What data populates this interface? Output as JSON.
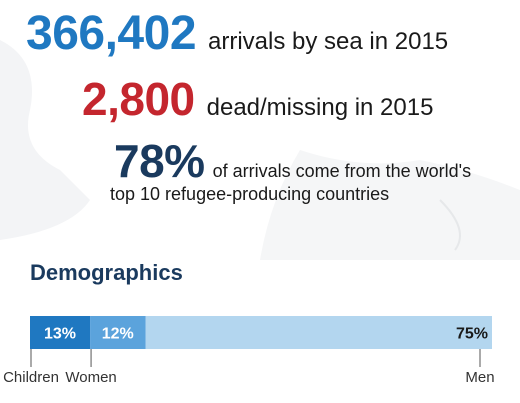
{
  "stats": {
    "arrivals": {
      "number": "366,402",
      "text": "arrivals by sea in 2015",
      "color": "#1f78c1"
    },
    "dead": {
      "number": "2,800",
      "text": "dead/missing in 2015",
      "color": "#c4262e"
    },
    "origin": {
      "number": "78%",
      "text_line1": "of arrivals come from the world's",
      "text_line2": "top 10 refugee-producing countries",
      "color": "#1a3a5e"
    }
  },
  "demographics": {
    "title": "Demographics"
  },
  "chart_data": {
    "type": "bar",
    "orientation": "horizontal-stacked",
    "title": "Demographics",
    "unit": "%",
    "categories": [
      "Children",
      "Women",
      "Men"
    ],
    "values": [
      13,
      12,
      75
    ],
    "value_labels": [
      "13%",
      "12%",
      "75%"
    ],
    "colors": [
      "#1f78c1",
      "#5ba3dc",
      "#b3d6ef"
    ],
    "label_colors": [
      "#ffffff",
      "#ffffff",
      "#1a1a1a"
    ],
    "xlim": [
      0,
      100
    ],
    "grid": false,
    "legend": "none"
  }
}
